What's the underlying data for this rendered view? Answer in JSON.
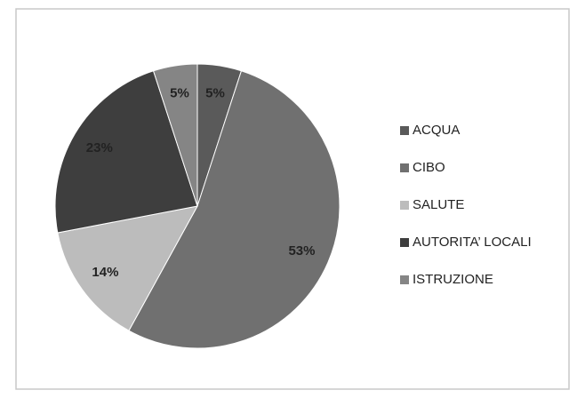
{
  "chart_data": {
    "type": "pie",
    "categories": [
      "ACQUA",
      "CIBO",
      "SALUTE",
      "AUTORITA’ LOCALI",
      "ISTRUZIONE"
    ],
    "values": [
      5,
      53,
      14,
      23,
      5
    ],
    "value_labels": [
      "5%",
      "53%",
      "14%",
      "23%",
      "5%"
    ],
    "colors": [
      "#5a5a5a",
      "#707070",
      "#bcbcbc",
      "#3e3e3e",
      "#858585"
    ],
    "legend": "right"
  }
}
